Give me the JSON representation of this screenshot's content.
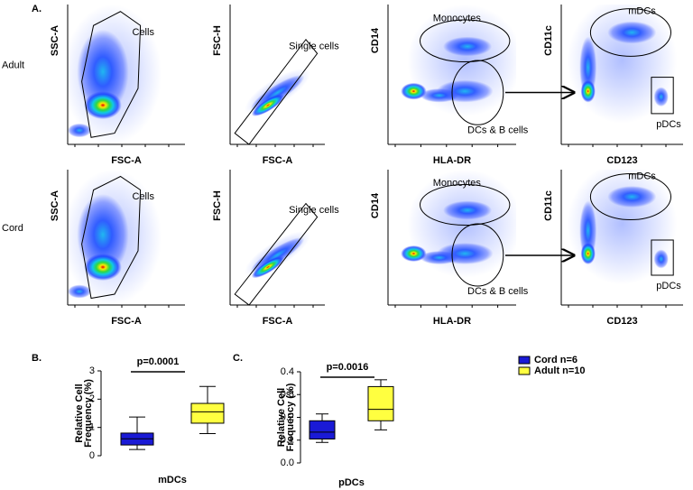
{
  "panel_a": {
    "label": "A.",
    "rows": [
      {
        "label": "Adult",
        "plots": [
          {
            "xlabel": "FSC-A",
            "ylabel": "SSC-A",
            "gates": [
              "Cells"
            ]
          },
          {
            "xlabel": "FSC-A",
            "ylabel": "FSC-H",
            "gates": [
              "Single cells"
            ]
          },
          {
            "xlabel": "HLA-DR",
            "ylabel": "CD14",
            "gates": [
              "Monocytes",
              "DCs & B cells"
            ]
          },
          {
            "xlabel": "CD123",
            "ylabel": "CD11c",
            "gates": [
              "mDCs",
              "pDCs"
            ]
          }
        ]
      },
      {
        "label": "Cord",
        "plots": [
          {
            "xlabel": "FSC-A",
            "ylabel": "SSC-A",
            "gates": [
              "Cells"
            ]
          },
          {
            "xlabel": "FSC-A",
            "ylabel": "FSC-H",
            "gates": [
              "Single cells"
            ]
          },
          {
            "xlabel": "HLA-DR",
            "ylabel": "CD14",
            "gates": [
              "Monocytes",
              "DCs & B cells"
            ]
          },
          {
            "xlabel": "CD123",
            "ylabel": "CD11c",
            "gates": [
              "mDCs",
              "pDCs"
            ]
          }
        ]
      }
    ]
  },
  "chart_data": [
    {
      "type": "box",
      "panel": "B.",
      "xlabel": "mDCs",
      "ylabel": [
        "Relative Cell",
        "Frequency (%)"
      ],
      "annotation": "p=0.0001",
      "ylim": [
        0,
        3
      ],
      "yticks": [
        0,
        1,
        2,
        3
      ],
      "series": [
        {
          "color": "#1a1ad6",
          "stats": {
            "min": 0.22,
            "q1": 0.38,
            "median": 0.6,
            "q3": 0.8,
            "max": 1.37
          }
        },
        {
          "color": "#ffff40",
          "stats": {
            "min": 0.78,
            "q1": 1.15,
            "median": 1.55,
            "q3": 1.85,
            "max": 2.45
          }
        }
      ]
    },
    {
      "type": "box",
      "panel": "C.",
      "xlabel": "pDCs",
      "ylabel": [
        "Relative Cell",
        "Frequency (%)"
      ],
      "annotation": "p=0.0016",
      "ylim": [
        0,
        0.4
      ],
      "yticks": [
        {
          "value": 0,
          "label": "0.0"
        },
        0.1,
        0.2,
        0.3,
        0.4
      ],
      "series": [
        {
          "name": "Cord n=6",
          "color": "#1a1ad6",
          "stats": {
            "min": 0.09,
            "q1": 0.105,
            "median": 0.135,
            "q3": 0.185,
            "max": 0.215
          }
        },
        {
          "name": "Adult n=10",
          "color": "#ffff40",
          "stats": {
            "min": 0.145,
            "q1": 0.185,
            "median": 0.235,
            "q3": 0.335,
            "max": 0.365
          }
        }
      ]
    }
  ]
}
